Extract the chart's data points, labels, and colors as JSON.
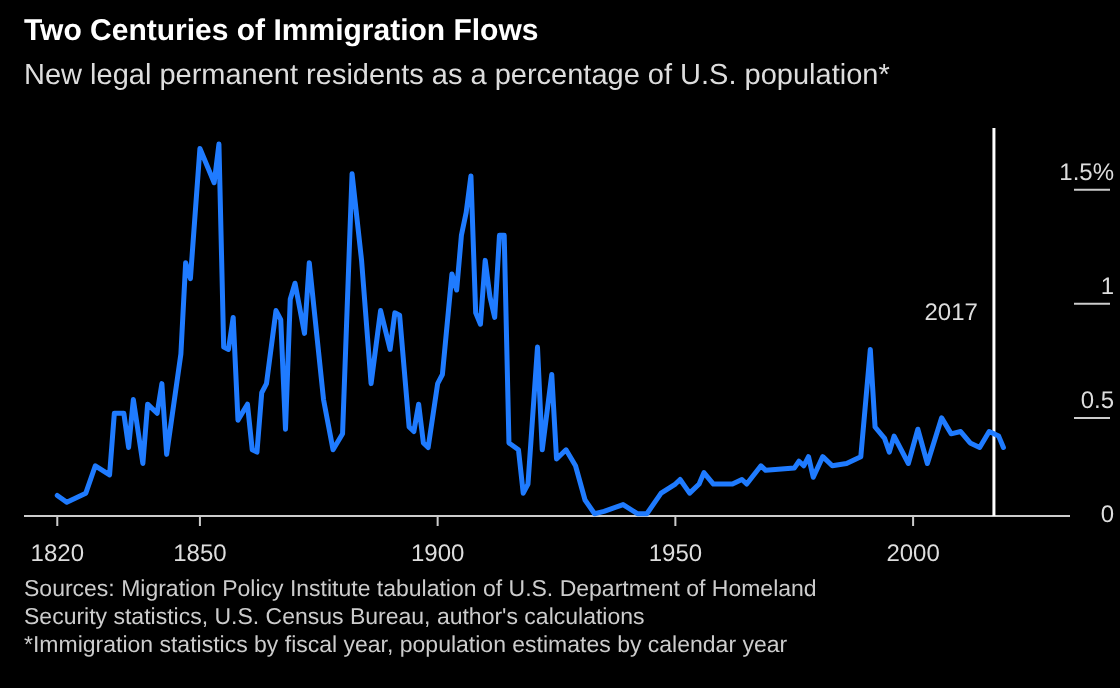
{
  "chart_data": {
    "type": "line",
    "title": "Two Centuries of Immigration Flows",
    "subtitle": "New legal permanent residents as a percentage of U.S. population*",
    "x": [
      1820,
      1822,
      1826,
      1828,
      1831,
      1832,
      1834,
      1835,
      1836,
      1838,
      1839,
      1841,
      1842,
      1843,
      1846,
      1847,
      1848,
      1850,
      1853,
      1854,
      1855,
      1856,
      1857,
      1858,
      1860,
      1861,
      1862,
      1863,
      1864,
      1866,
      1867,
      1868,
      1869,
      1870,
      1872,
      1873,
      1876,
      1878,
      1880,
      1882,
      1884,
      1886,
      1888,
      1890,
      1891,
      1892,
      1894,
      1895,
      1896,
      1897,
      1898,
      1900,
      1901,
      1903,
      1904,
      1905,
      1906,
      1907,
      1908,
      1909,
      1910,
      1911,
      1912,
      1913,
      1914,
      1915,
      1917,
      1918,
      1919,
      1921,
      1922,
      1924,
      1925,
      1927,
      1929,
      1931,
      1933,
      1935,
      1939,
      1942,
      1944,
      1947,
      1950,
      1951,
      1952,
      1953,
      1955,
      1956,
      1958,
      1962,
      1964,
      1965,
      1968,
      1969,
      1975,
      1976,
      1977,
      1978,
      1979,
      1981,
      1983,
      1986,
      1989,
      1991,
      1992,
      1994,
      1995,
      1996,
      1999,
      2001,
      2003,
      2006,
      2008,
      2010,
      2012,
      2014,
      2016,
      2018,
      2019
    ],
    "series": [
      {
        "color": "#1f7bff",
        "values": [
          0.09,
          0.06,
          0.1,
          0.22,
          0.18,
          0.45,
          0.45,
          0.3,
          0.51,
          0.23,
          0.49,
          0.45,
          0.58,
          0.27,
          0.71,
          1.11,
          1.04,
          1.61,
          1.46,
          1.63,
          0.74,
          0.73,
          0.87,
          0.42,
          0.49,
          0.29,
          0.28,
          0.54,
          0.58,
          0.9,
          0.86,
          0.38,
          0.95,
          1.02,
          0.8,
          1.11,
          0.51,
          0.29,
          0.36,
          1.5,
          1.12,
          0.58,
          0.9,
          0.73,
          0.89,
          0.88,
          0.39,
          0.37,
          0.49,
          0.32,
          0.3,
          0.58,
          0.62,
          1.06,
          0.99,
          1.23,
          1.33,
          1.49,
          0.89,
          0.84,
          1.12,
          0.96,
          0.87,
          1.23,
          1.23,
          0.32,
          0.29,
          0.1,
          0.14,
          0.74,
          0.29,
          0.62,
          0.25,
          0.29,
          0.22,
          0.07,
          0.01,
          0.02,
          0.05,
          0.01,
          0.01,
          0.1,
          0.14,
          0.16,
          0.13,
          0.1,
          0.14,
          0.19,
          0.14,
          0.14,
          0.16,
          0.14,
          0.22,
          0.2,
          0.21,
          0.24,
          0.22,
          0.26,
          0.17,
          0.26,
          0.22,
          0.23,
          0.26,
          0.73,
          0.39,
          0.34,
          0.28,
          0.35,
          0.23,
          0.38,
          0.23,
          0.43,
          0.36,
          0.37,
          0.32,
          0.3,
          0.37,
          0.35,
          0.3
        ]
      }
    ],
    "xlim": [
      1813,
      2033
    ],
    "ylim": [
      0,
      1.7
    ],
    "xticks": [
      1820,
      1850,
      1900,
      1950,
      2000
    ],
    "yticks": [
      0,
      0.5,
      1.0,
      {
        "value": 1.5,
        "label": "1.5%"
      }
    ],
    "ref_lines": [
      {
        "axis": "x",
        "value": 2017,
        "label": "2017",
        "color": "#ffffff"
      }
    ],
    "annotations": [
      "Sources: Migration Policy Institute tabulation of U.S. Department of Homeland",
      "Security statistics, U.S. Census Bureau, author's calculations",
      "*Immigration statistics by fiscal year, population estimates by calendar year"
    ]
  }
}
